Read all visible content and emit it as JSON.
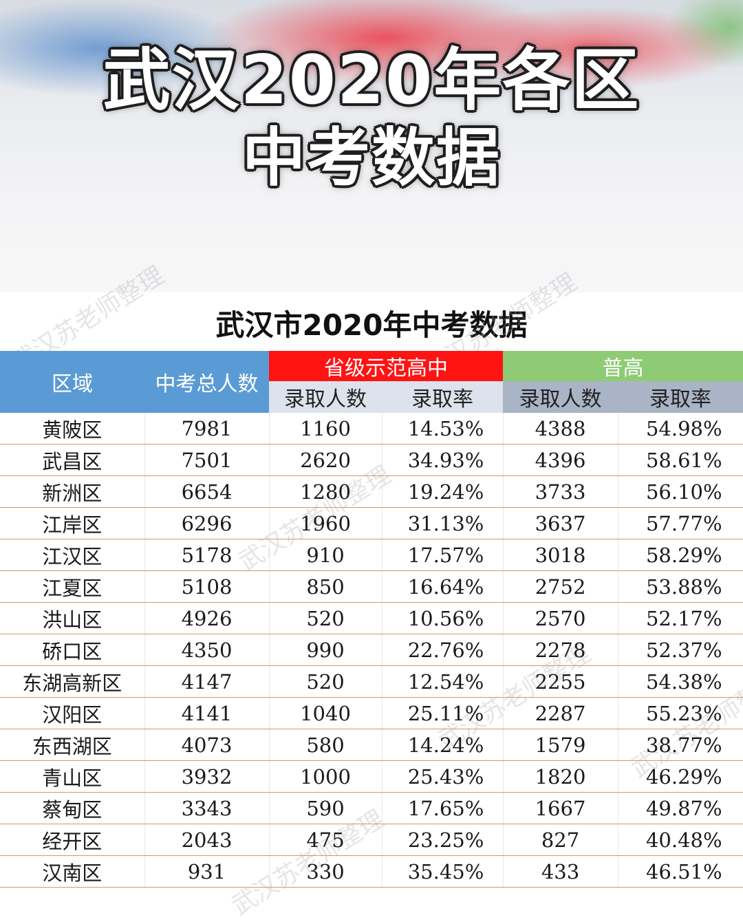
{
  "banner": {
    "title_line1": "武汉2020年各区",
    "title_line2": "中考数据"
  },
  "sheet": {
    "title": "武汉市2020年中考数据",
    "watermark": "武汉苏老师整理",
    "headers": {
      "district": "区域",
      "total": "中考总人数",
      "provincial_group": "省级示范高中",
      "general_group": "普高",
      "admitted": "录取人数",
      "rate": "录取率"
    },
    "rows": [
      {
        "district": "黄陂区",
        "total": "7981",
        "prov_admitted": "1160",
        "prov_rate": "14.53%",
        "gen_admitted": "4388",
        "gen_rate": "54.98%"
      },
      {
        "district": "武昌区",
        "total": "7501",
        "prov_admitted": "2620",
        "prov_rate": "34.93%",
        "gen_admitted": "4396",
        "gen_rate": "58.61%"
      },
      {
        "district": "新洲区",
        "total": "6654",
        "prov_admitted": "1280",
        "prov_rate": "19.24%",
        "gen_admitted": "3733",
        "gen_rate": "56.10%"
      },
      {
        "district": "江岸区",
        "total": "6296",
        "prov_admitted": "1960",
        "prov_rate": "31.13%",
        "gen_admitted": "3637",
        "gen_rate": "57.77%"
      },
      {
        "district": "江汉区",
        "total": "5178",
        "prov_admitted": "910",
        "prov_rate": "17.57%",
        "gen_admitted": "3018",
        "gen_rate": "58.29%"
      },
      {
        "district": "江夏区",
        "total": "5108",
        "prov_admitted": "850",
        "prov_rate": "16.64%",
        "gen_admitted": "2752",
        "gen_rate": "53.88%"
      },
      {
        "district": "洪山区",
        "total": "4926",
        "prov_admitted": "520",
        "prov_rate": "10.56%",
        "gen_admitted": "2570",
        "gen_rate": "52.17%"
      },
      {
        "district": "硚口区",
        "total": "4350",
        "prov_admitted": "990",
        "prov_rate": "22.76%",
        "gen_admitted": "2278",
        "gen_rate": "52.37%"
      },
      {
        "district": "东湖高新区",
        "total": "4147",
        "prov_admitted": "520",
        "prov_rate": "12.54%",
        "gen_admitted": "2255",
        "gen_rate": "54.38%"
      },
      {
        "district": "汉阳区",
        "total": "4141",
        "prov_admitted": "1040",
        "prov_rate": "25.11%",
        "gen_admitted": "2287",
        "gen_rate": "55.23%"
      },
      {
        "district": "东西湖区",
        "total": "4073",
        "prov_admitted": "580",
        "prov_rate": "14.24%",
        "gen_admitted": "1579",
        "gen_rate": "38.77%"
      },
      {
        "district": "青山区",
        "total": "3932",
        "prov_admitted": "1000",
        "prov_rate": "25.43%",
        "gen_admitted": "1820",
        "gen_rate": "46.29%"
      },
      {
        "district": "蔡甸区",
        "total": "3343",
        "prov_admitted": "590",
        "prov_rate": "17.65%",
        "gen_admitted": "1667",
        "gen_rate": "49.87%"
      },
      {
        "district": "经开区",
        "total": "2043",
        "prov_admitted": "475",
        "prov_rate": "23.25%",
        "gen_admitted": "827",
        "gen_rate": "40.48%"
      },
      {
        "district": "汉南区",
        "total": "931",
        "prov_admitted": "330",
        "prov_rate": "35.45%",
        "gen_admitted": "433",
        "gen_rate": "46.51%"
      }
    ]
  }
}
